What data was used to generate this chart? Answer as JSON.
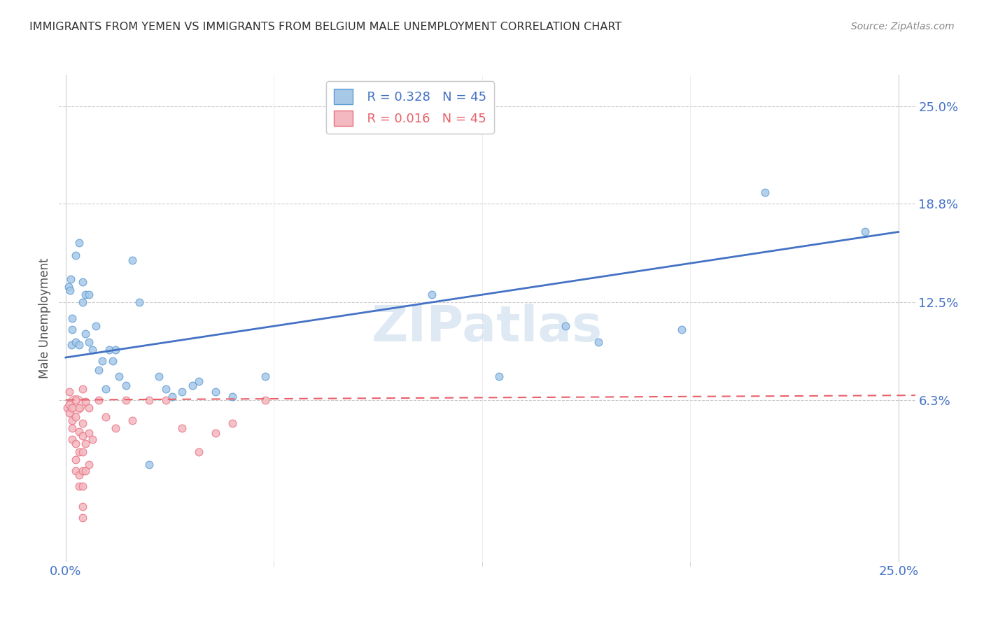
{
  "title": "IMMIGRANTS FROM YEMEN VS IMMIGRANTS FROM BELGIUM MALE UNEMPLOYMENT CORRELATION CHART",
  "source": "Source: ZipAtlas.com",
  "ylabel": "Male Unemployment",
  "xlim": [
    -0.002,
    0.255
  ],
  "ylim": [
    -0.04,
    0.27
  ],
  "xtick_positions": [
    0.0,
    0.25
  ],
  "xtick_labels": [
    "0.0%",
    "25.0%"
  ],
  "ytick_values": [
    0.25,
    0.188,
    0.125,
    0.063
  ],
  "ytick_labels": [
    "25.0%",
    "18.8%",
    "12.5%",
    "6.3%"
  ],
  "legend_r_yemen": "R = 0.328",
  "legend_n_yemen": "N = 45",
  "legend_r_belgium": "R = 0.016",
  "legend_n_belgium": "N = 45",
  "color_yemen_fill": "#a8c8e8",
  "color_yemen_edge": "#5b9bd5",
  "color_belgium_fill": "#f4b8c0",
  "color_belgium_edge": "#e87080",
  "color_yemen_line": "#4472c4",
  "color_belgium_line": "#e8606a",
  "watermark": "ZIPatlas",
  "yemen_points": [
    [
      0.0008,
      0.135
    ],
    [
      0.0012,
      0.133
    ],
    [
      0.0015,
      0.14
    ],
    [
      0.0018,
      0.098
    ],
    [
      0.002,
      0.115
    ],
    [
      0.002,
      0.108
    ],
    [
      0.003,
      0.1
    ],
    [
      0.003,
      0.155
    ],
    [
      0.004,
      0.163
    ],
    [
      0.004,
      0.098
    ],
    [
      0.005,
      0.138
    ],
    [
      0.005,
      0.125
    ],
    [
      0.006,
      0.13
    ],
    [
      0.006,
      0.105
    ],
    [
      0.007,
      0.1
    ],
    [
      0.007,
      0.13
    ],
    [
      0.008,
      0.095
    ],
    [
      0.009,
      0.11
    ],
    [
      0.01,
      0.082
    ],
    [
      0.011,
      0.088
    ],
    [
      0.012,
      0.07
    ],
    [
      0.013,
      0.095
    ],
    [
      0.014,
      0.088
    ],
    [
      0.015,
      0.095
    ],
    [
      0.016,
      0.078
    ],
    [
      0.018,
      0.072
    ],
    [
      0.02,
      0.152
    ],
    [
      0.022,
      0.125
    ],
    [
      0.025,
      0.022
    ],
    [
      0.028,
      0.078
    ],
    [
      0.03,
      0.07
    ],
    [
      0.032,
      0.065
    ],
    [
      0.035,
      0.068
    ],
    [
      0.038,
      0.072
    ],
    [
      0.04,
      0.075
    ],
    [
      0.045,
      0.068
    ],
    [
      0.05,
      0.065
    ],
    [
      0.06,
      0.078
    ],
    [
      0.11,
      0.13
    ],
    [
      0.13,
      0.078
    ],
    [
      0.15,
      0.11
    ],
    [
      0.16,
      0.1
    ],
    [
      0.185,
      0.108
    ],
    [
      0.21,
      0.195
    ],
    [
      0.24,
      0.17
    ]
  ],
  "belgium_points": [
    [
      0.0005,
      0.058
    ],
    [
      0.001,
      0.06
    ],
    [
      0.001,
      0.055
    ],
    [
      0.001,
      0.068
    ],
    [
      0.002,
      0.058
    ],
    [
      0.002,
      0.05
    ],
    [
      0.002,
      0.045
    ],
    [
      0.002,
      0.038
    ],
    [
      0.003,
      0.063
    ],
    [
      0.003,
      0.052
    ],
    [
      0.003,
      0.035
    ],
    [
      0.003,
      0.025
    ],
    [
      0.003,
      0.018
    ],
    [
      0.004,
      0.058
    ],
    [
      0.004,
      0.043
    ],
    [
      0.004,
      0.03
    ],
    [
      0.004,
      0.015
    ],
    [
      0.004,
      0.008
    ],
    [
      0.005,
      0.07
    ],
    [
      0.005,
      0.048
    ],
    [
      0.005,
      0.04
    ],
    [
      0.005,
      0.03
    ],
    [
      0.005,
      0.018
    ],
    [
      0.005,
      0.008
    ],
    [
      0.005,
      -0.005
    ],
    [
      0.005,
      -0.012
    ],
    [
      0.006,
      0.062
    ],
    [
      0.006,
      0.035
    ],
    [
      0.006,
      0.018
    ],
    [
      0.007,
      0.058
    ],
    [
      0.007,
      0.042
    ],
    [
      0.007,
      0.022
    ],
    [
      0.008,
      0.038
    ],
    [
      0.01,
      0.063
    ],
    [
      0.012,
      0.052
    ],
    [
      0.015,
      0.045
    ],
    [
      0.018,
      0.063
    ],
    [
      0.02,
      0.05
    ],
    [
      0.025,
      0.063
    ],
    [
      0.03,
      0.063
    ],
    [
      0.035,
      0.045
    ],
    [
      0.04,
      0.03
    ],
    [
      0.045,
      0.042
    ],
    [
      0.05,
      0.048
    ],
    [
      0.06,
      0.063
    ]
  ],
  "yemen_trend": [
    0.0,
    0.25,
    0.09,
    0.17
  ],
  "belgium_trend": [
    0.0,
    0.35,
    0.063,
    0.067
  ],
  "yemen_size": 60,
  "belgium_size": 60,
  "background_color": "#ffffff",
  "title_color": "#333333",
  "title_fontsize": 11.5,
  "source_fontsize": 10,
  "tick_color": "#4472c4",
  "ylabel_color": "#555555",
  "grid_color": "#cccccc",
  "watermark_color": "#b8d0e8",
  "watermark_alpha": 0.45
}
